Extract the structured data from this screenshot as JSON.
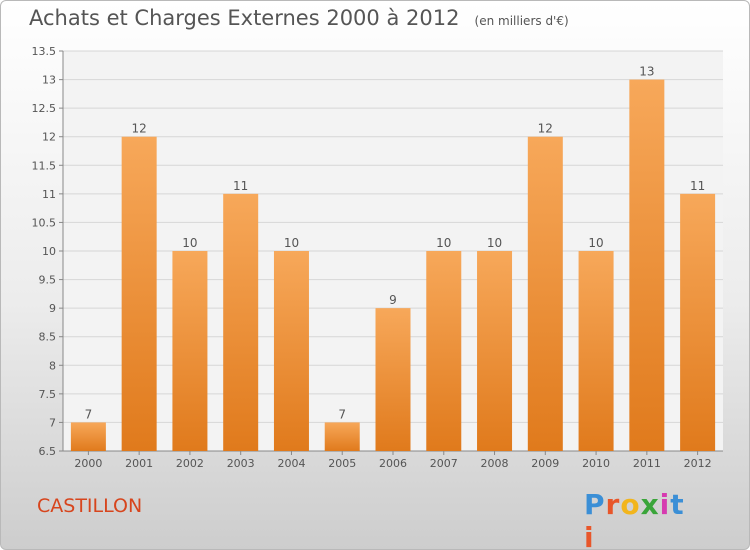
{
  "header": {
    "title": "Achats et Charges Externes 2000 à 2012",
    "subtitle": "(en milliers d'€)"
  },
  "footer": {
    "city": "CASTILLON",
    "logo_text": "Proxiti"
  },
  "colors": {
    "bar_light": "#f7a85a",
    "bar_dark": "#e07a1c",
    "axis_text": "#555555",
    "grid": "#d6d6d6",
    "city": "#d7451d"
  },
  "chart_data": {
    "type": "bar",
    "title": "Achats et Charges Externes 2000 à 2012",
    "subtitle": "(en milliers d'€)",
    "categories": [
      "2000",
      "2001",
      "2002",
      "2003",
      "2004",
      "2005",
      "2006",
      "2007",
      "2008",
      "2009",
      "2010",
      "2011",
      "2012"
    ],
    "values": [
      7,
      12,
      10,
      11,
      10,
      7,
      9,
      10,
      10,
      12,
      10,
      13,
      11
    ],
    "data_labels": [
      "7",
      "12",
      "10",
      "11",
      "10",
      "7",
      "9",
      "10",
      "10",
      "12",
      "10",
      "13",
      "11"
    ],
    "ylim": [
      6.5,
      13.5
    ],
    "yticks": [
      6.5,
      7,
      7.5,
      8,
      8.5,
      9,
      9.5,
      10,
      10.5,
      11,
      11.5,
      12,
      12.5,
      13,
      13.5
    ],
    "ytick_labels": [
      "6.5",
      "7",
      "7.5",
      "8",
      "8.5",
      "9",
      "9.5",
      "10",
      "10.5",
      "11",
      "11.5",
      "12",
      "12.5",
      "13",
      "13.5"
    ],
    "grid": true,
    "xlabel": "",
    "ylabel": ""
  }
}
